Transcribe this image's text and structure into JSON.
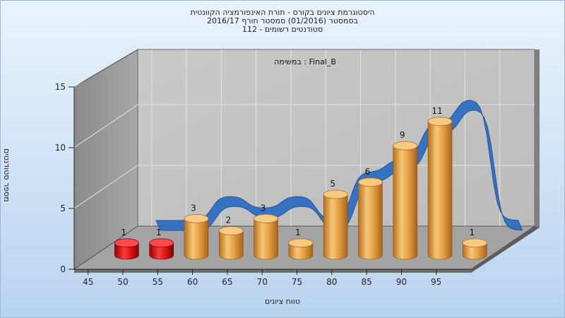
{
  "header": {
    "title_line1": "היסטוגרמת ציונים בקורס - תורת האינפורמציה הקוונטית",
    "title_line2": "בסמסטר  (01/2016)  סמסטר חורף 2016/17",
    "title_line3": "סטודנטים רשומים - 112"
  },
  "chart_data": {
    "type": "bar",
    "annotation": "במשימה : Final_B",
    "xlabel": "טווח ציונים",
    "ylabel": "מספר סטודנטים",
    "ylim": [
      0,
      15
    ],
    "yticks": [
      "0",
      "5",
      "10",
      "15"
    ],
    "x_ticks": [
      "45",
      "50",
      "55",
      "60",
      "65",
      "70",
      "75",
      "80",
      "85",
      "90",
      "95"
    ],
    "bars": [
      {
        "x": 47.5,
        "value": 1,
        "color": "#d00d10"
      },
      {
        "x": 52.5,
        "value": 1,
        "color": "#d00d10"
      },
      {
        "x": 57.5,
        "value": 3,
        "color": "#e1962e"
      },
      {
        "x": 62.5,
        "value": 2,
        "color": "#e1962e"
      },
      {
        "x": 67.5,
        "value": 3,
        "color": "#e1962e"
      },
      {
        "x": 72.5,
        "value": 1,
        "color": "#e1962e"
      },
      {
        "x": 77.5,
        "value": 5,
        "color": "#e1962e"
      },
      {
        "x": 82.5,
        "value": 6,
        "color": "#e1962e"
      },
      {
        "x": 87.5,
        "value": 9,
        "color": "#e1962e"
      },
      {
        "x": 92.5,
        "value": 11,
        "color": "#e1962e"
      },
      {
        "x": 97.5,
        "value": 1,
        "color": "#e1962e"
      }
    ],
    "curve_color": "#2e6ec2",
    "grid": true
  }
}
